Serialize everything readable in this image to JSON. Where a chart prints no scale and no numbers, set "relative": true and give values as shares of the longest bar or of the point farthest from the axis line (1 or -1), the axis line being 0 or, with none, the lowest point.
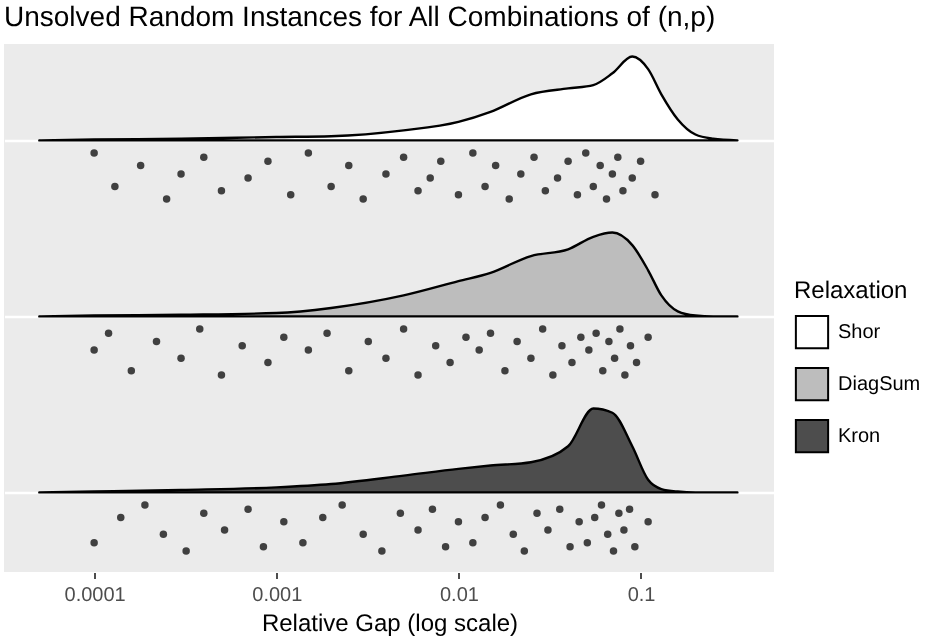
{
  "chart_data": [
    {
      "type": "area",
      "title": "Unsolved Random Instances for All Combinations of (n,p)",
      "relative": true,
      "xlim": [
        3.2e-05,
        0.54
      ],
      "xticks": [
        0.0001,
        0.001,
        0.01,
        0.1
      ],
      "log": "x",
      "tick_labels": false,
      "legend": "right",
      "legend_title": "Relaxation",
      "x": [
        5e-05,
        0.0001,
        0.0003,
        0.001,
        0.002,
        0.005,
        0.01,
        0.015,
        0.025,
        0.04,
        0.055,
        0.07,
        0.09,
        0.11,
        0.13,
        0.16,
        0.2,
        0.25,
        0.34
      ],
      "series": [
        {
          "name": "Shor",
          "color": "#ffffff",
          "values": [
            0,
            0.01,
            0.02,
            0.04,
            0.05,
            0.12,
            0.22,
            0.34,
            0.55,
            0.62,
            0.66,
            0.8,
            1,
            0.85,
            0.55,
            0.25,
            0.07,
            0.02,
            0
          ]
        },
        {
          "type": "scatter",
          "marker": "circle",
          "color": "#222222",
          "x": [
            0.0001,
            0.00013,
            0.00018,
            0.00025,
            0.0003,
            0.0004,
            0.0005,
            0.0007,
            0.0009,
            0.0012,
            0.0015,
            0.002,
            0.0025,
            0.003,
            0.004,
            0.005,
            0.006,
            0.007,
            0.008,
            0.01,
            0.012,
            0.014,
            0.016,
            0.019,
            0.022,
            0.026,
            0.03,
            0.035,
            0.04,
            0.045,
            0.05,
            0.055,
            0.06,
            0.065,
            0.07,
            0.075,
            0.08,
            0.09,
            0.1,
            0.12
          ],
          "values": [
            -0.15,
            -0.55,
            -0.3,
            -0.7,
            -0.4,
            -0.2,
            -0.6,
            -0.45,
            -0.25,
            -0.65,
            -0.15,
            -0.55,
            -0.3,
            -0.7,
            -0.4,
            -0.2,
            -0.6,
            -0.45,
            -0.25,
            -0.65,
            -0.15,
            -0.55,
            -0.3,
            -0.7,
            -0.4,
            -0.2,
            -0.6,
            -0.45,
            -0.25,
            -0.65,
            -0.15,
            -0.55,
            -0.3,
            -0.7,
            -0.4,
            -0.2,
            -0.6,
            -0.45,
            -0.25,
            -0.65
          ]
        }
      ]
    },
    {
      "type": "area",
      "relative": true,
      "xlim": [
        3.2e-05,
        0.54
      ],
      "xticks": [
        0.0001,
        0.001,
        0.01,
        0.1
      ],
      "log": "x",
      "tick_labels": false,
      "legend": "right",
      "x": [
        5e-05,
        0.0001,
        0.0003,
        0.001,
        0.002,
        0.005,
        0.01,
        0.015,
        0.025,
        0.04,
        0.055,
        0.07,
        0.09,
        0.11,
        0.13,
        0.16,
        0.2,
        0.25,
        0.34
      ],
      "series": [
        {
          "name": "DiagSum",
          "color": "#bdbdbd",
          "values": [
            0,
            0.01,
            0.02,
            0.04,
            0.1,
            0.25,
            0.42,
            0.52,
            0.72,
            0.8,
            0.95,
            1,
            0.85,
            0.55,
            0.25,
            0.06,
            0.01,
            0,
            0
          ]
        },
        {
          "type": "scatter",
          "marker": "circle",
          "color": "#222222",
          "x": [
            0.0001,
            0.00012,
            0.00016,
            0.00022,
            0.0003,
            0.00038,
            0.0005,
            0.00065,
            0.0009,
            0.0011,
            0.0015,
            0.0019,
            0.0025,
            0.0032,
            0.004,
            0.005,
            0.006,
            0.0075,
            0.009,
            0.011,
            0.013,
            0.015,
            0.018,
            0.021,
            0.025,
            0.029,
            0.033,
            0.037,
            0.042,
            0.047,
            0.052,
            0.057,
            0.062,
            0.067,
            0.072,
            0.077,
            0.082,
            0.088,
            0.095,
            0.11
          ],
          "values": [
            -0.4,
            -0.2,
            -0.65,
            -0.3,
            -0.5,
            -0.15,
            -0.7,
            -0.35,
            -0.55,
            -0.25,
            -0.4,
            -0.2,
            -0.65,
            -0.3,
            -0.5,
            -0.15,
            -0.7,
            -0.35,
            -0.55,
            -0.25,
            -0.4,
            -0.2,
            -0.65,
            -0.3,
            -0.5,
            -0.15,
            -0.7,
            -0.35,
            -0.55,
            -0.25,
            -0.4,
            -0.2,
            -0.65,
            -0.3,
            -0.5,
            -0.15,
            -0.7,
            -0.35,
            -0.55,
            -0.25
          ]
        }
      ]
    },
    {
      "type": "area",
      "relative": true,
      "xlim": [
        3.2e-05,
        0.54
      ],
      "xticks": [
        0.0001,
        0.001,
        0.01,
        0.1
      ],
      "log": "x",
      "tick_labels": "x",
      "legend": "right",
      "xlabel": "Relative Gap (log scale)",
      "x": [
        5e-05,
        0.0001,
        0.0003,
        0.001,
        0.002,
        0.005,
        0.01,
        0.015,
        0.025,
        0.04,
        0.055,
        0.07,
        0.09,
        0.11,
        0.13,
        0.16,
        0.2,
        0.25,
        0.34
      ],
      "series": [
        {
          "name": "Kron",
          "color": "#4d4d4d",
          "values": [
            0,
            0.01,
            0.03,
            0.06,
            0.1,
            0.2,
            0.28,
            0.32,
            0.36,
            0.55,
            1,
            0.95,
            0.55,
            0.15,
            0.04,
            0.01,
            0,
            0,
            0
          ]
        },
        {
          "type": "scatter",
          "marker": "circle",
          "color": "#222222",
          "x": [
            0.0001,
            0.00014,
            0.00019,
            0.00024,
            0.00032,
            0.0004,
            0.00052,
            0.0007,
            0.00085,
            0.0011,
            0.0014,
            0.0018,
            0.0023,
            0.003,
            0.0038,
            0.0048,
            0.006,
            0.0072,
            0.0085,
            0.01,
            0.012,
            0.014,
            0.017,
            0.02,
            0.023,
            0.027,
            0.031,
            0.036,
            0.041,
            0.046,
            0.051,
            0.056,
            0.061,
            0.066,
            0.071,
            0.076,
            0.081,
            0.087,
            0.093,
            0.11
          ],
          "values": [
            -0.6,
            -0.3,
            -0.15,
            -0.5,
            -0.7,
            -0.25,
            -0.45,
            -0.2,
            -0.65,
            -0.35,
            -0.6,
            -0.3,
            -0.15,
            -0.5,
            -0.7,
            -0.25,
            -0.45,
            -0.2,
            -0.65,
            -0.35,
            -0.6,
            -0.3,
            -0.15,
            -0.5,
            -0.7,
            -0.25,
            -0.45,
            -0.2,
            -0.65,
            -0.35,
            -0.6,
            -0.3,
            -0.15,
            -0.5,
            -0.7,
            -0.25,
            -0.45,
            -0.2,
            -0.65,
            -0.35
          ]
        }
      ]
    }
  ]
}
